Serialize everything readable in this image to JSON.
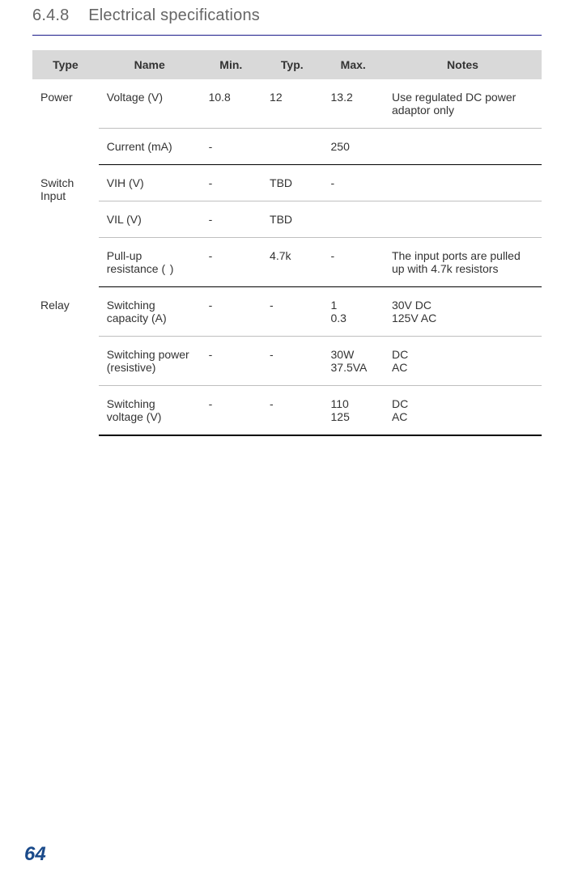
{
  "heading": {
    "number": "6.4.8",
    "title": "Electrical specifications"
  },
  "columns": {
    "c0": "Type",
    "c1": "Name",
    "c2": "Min.",
    "c3": "Typ.",
    "c4": "Max.",
    "c5": "Notes"
  },
  "rows": {
    "r0": {
      "type": "Power",
      "name": "Voltage (V)",
      "min": "10.8",
      "typ": "12",
      "max": "13.2",
      "notes": "Use regulated DC power adaptor only"
    },
    "r1": {
      "name": "Current (mA)",
      "min": "-",
      "typ": "",
      "max": "250",
      "notes": ""
    },
    "r2": {
      "type": "Switch Input",
      "name": "VIH (V)",
      "min": "-",
      "typ": "TBD",
      "max": "-",
      "notes": ""
    },
    "r3": {
      "name": "VIL (V)",
      "min": "-",
      "typ": "TBD",
      "max": "",
      "notes": ""
    },
    "r4": {
      "name": "Pull-up resistance (  )",
      "min": "-",
      "typ": "4.7k",
      "max": "-",
      "notes": "The input ports are pulled up with 4.7k resistors"
    },
    "r5": {
      "type": "Relay",
      "name": "Switching capacity (A)",
      "min": "-",
      "typ": "-",
      "max": "1\n0.3",
      "notes": "30V DC\n125V AC"
    },
    "r6": {
      "name": "Switching power (resistive)",
      "min": "-",
      "typ": "-",
      "max": "30W\n37.5VA",
      "notes": "DC\nAC"
    },
    "r7": {
      "name": "Switching voltage (V)",
      "min": "-",
      "typ": "-",
      "max": "110\n125",
      "notes": "DC\nAC"
    }
  },
  "pageNumber": "64",
  "style": {
    "heading_color": "#666666",
    "underline_color": "#1a1a8a",
    "header_bg": "#d9d9d9",
    "inner_border": "#bfbfbf",
    "group_border": "#000000",
    "font_family": "Arial, Helvetica, sans-serif",
    "body_bg": "#ffffff",
    "page_num_color": "#1a4a8a"
  }
}
